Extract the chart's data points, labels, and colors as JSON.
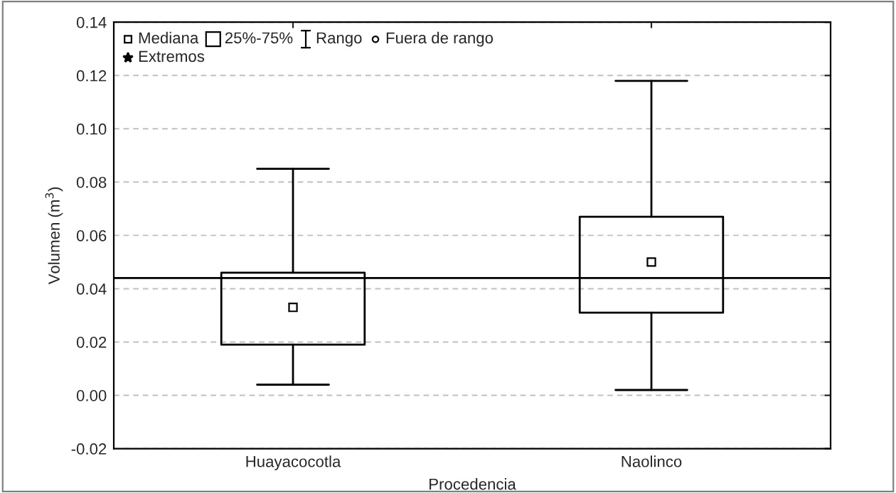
{
  "chart_data": {
    "type": "box",
    "xlabel": "Procedencia",
    "ylabel": "Volumen (m$^{3}$)",
    "categories": [
      "Huayacocotla",
      "Naolinco"
    ],
    "boxes": [
      {
        "low": 0.004,
        "q1": 0.019,
        "median": 0.033,
        "q3": 0.046,
        "high": 0.085
      },
      {
        "low": 0.002,
        "q1": 0.031,
        "median": 0.05,
        "q3": 0.067,
        "high": 0.118
      }
    ],
    "ylim": [
      -0.02,
      0.14
    ],
    "yticks": [
      {
        "value": -0.02,
        "label": "-0.02"
      },
      {
        "value": 0,
        "label": "0.00"
      },
      {
        "value": 0.02,
        "label": "0.02"
      },
      {
        "value": 0.04,
        "label": "0.04"
      },
      {
        "value": 0.06,
        "label": "0.06"
      },
      {
        "value": 0.08,
        "label": "0.08"
      },
      {
        "value": 0.1,
        "label": "0.10"
      },
      {
        "value": 0.12,
        "label": "0.12"
      },
      {
        "value": 0.14,
        "label": "0.14"
      }
    ],
    "ref_lines": [
      {
        "axis": "y",
        "value": 0.044,
        "color": "#000000"
      }
    ],
    "grid": "y",
    "annotations": [
      "Mediana",
      "25%-75%",
      "Rango",
      "Fuera de rango",
      "Extremos"
    ]
  }
}
